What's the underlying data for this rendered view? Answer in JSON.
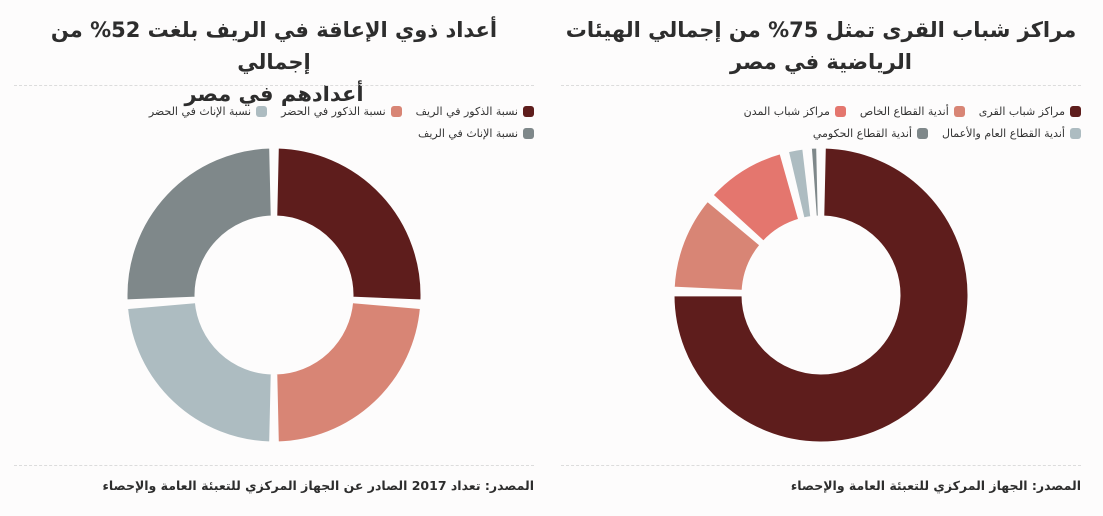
{
  "charts": {
    "right": {
      "title_line1": "مراكز شباب القرى تمثل 75% من إجمالي الهيئات",
      "title_line2": "الرياضية في مصر",
      "source": "المصدر: الجهاز المركزي للتعبئة العامة والإحصاء",
      "legend_rows": [
        [
          {
            "label": "مراكز شباب القرى",
            "color": "#5e1d1c"
          },
          {
            "label": "أندية القطاع الخاص",
            "color": "#d88575"
          },
          {
            "label": "مراكز شباب المدن",
            "color": "#e4766e"
          }
        ],
        [
          {
            "label": "أندية القطاع العام والأعمال",
            "color": "#adbcc1"
          },
          {
            "label": "أندية القطاع الحكومي",
            "color": "#7f888a"
          }
        ]
      ]
    },
    "left": {
      "title_line1": "أعداد ذوي الإعاقة في الريف بلغت 52% من إجمالي",
      "title_line2": "أعدادهم في مصر",
      "source": "المصدر: تعداد 2017 الصادر عن الجهاز المركزي للتعبئة العامة والإحصاء",
      "legend_rows": [
        [
          {
            "label": "نسبة الذكور في الريف",
            "color": "#5e1d1c"
          },
          {
            "label": "نسبة الذكور في الحضر",
            "color": "#d88575"
          },
          {
            "label": "نسبة الإناث في الحضر",
            "color": "#adbcc1"
          }
        ],
        [
          {
            "label": "نسبة الإناث في الريف",
            "color": "#7f888a"
          }
        ]
      ]
    }
  },
  "chart_data": [
    {
      "type": "pie",
      "title": "مراكز شباب القرى تمثل 75% من إجمالي الهيئات الرياضية في مصر",
      "categories": [
        "مراكز شباب القرى",
        "أندية القطاع الخاص",
        "مراكز شباب المدن",
        "أندية القطاع العام والأعمال",
        "أندية القطاع الحكومي"
      ],
      "values": [
        75,
        11,
        9.5,
        2.5,
        1.5
      ],
      "colors": [
        "#5e1d1c",
        "#d88575",
        "#e4766e",
        "#adbcc1",
        "#7f888a"
      ]
    },
    {
      "type": "pie",
      "title": "أعداد ذوي الإعاقة في الريف بلغت 52% من إجمالي أعدادهم في مصر",
      "categories": [
        "نسبة الذكور في الريف",
        "نسبة الذكور في الحضر",
        "نسبة الإناث في الحضر",
        "نسبة الإناث في الريف"
      ],
      "values": [
        26,
        24,
        24,
        26
      ],
      "colors": [
        "#5e1d1c",
        "#d88575",
        "#adbcc1",
        "#7f888a"
      ]
    }
  ]
}
